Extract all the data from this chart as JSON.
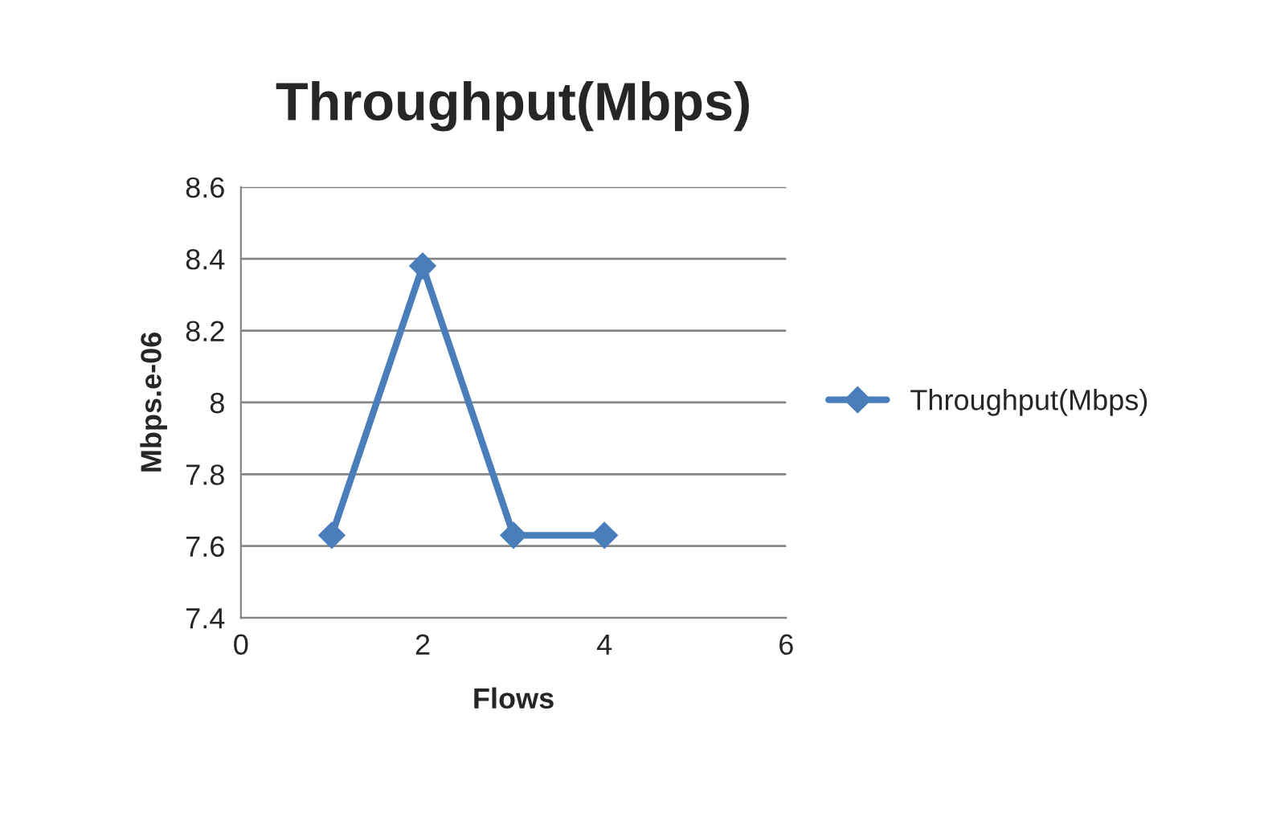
{
  "chart_data": {
    "type": "line",
    "title": "Throughput(Mbps)",
    "xlabel": "Flows",
    "ylabel": "Mbps.e-06",
    "x": [
      1,
      2,
      3,
      4
    ],
    "series": [
      {
        "name": "Throughput(Mbps)",
        "color": "#4a7ebb",
        "values": [
          7.63,
          8.38,
          7.63,
          7.63
        ]
      }
    ],
    "xlim": [
      0,
      6
    ],
    "xticks": [
      0,
      2,
      4,
      6
    ],
    "ylim": [
      7.4,
      8.6
    ],
    "yticks": [
      7.4,
      7.6,
      7.8,
      8,
      8.2,
      8.4,
      8.6
    ],
    "grid": "y",
    "legend": "right",
    "marker": "diamond",
    "line_style": "solid"
  }
}
